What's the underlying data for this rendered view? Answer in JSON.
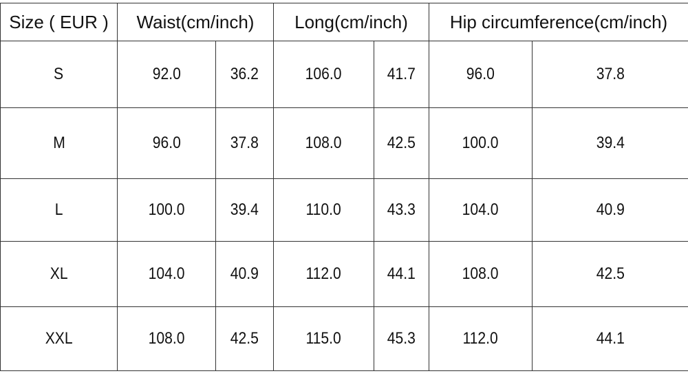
{
  "table": {
    "header": [
      "Size ( EUR )",
      "Waist(cm/inch)",
      "Long(cm/inch)",
      "Hip circumference(cm/inch)"
    ],
    "rows": [
      [
        "S",
        "92.0",
        "36.2",
        "106.0",
        "41.7",
        "96.0",
        "37.8"
      ],
      [
        "M",
        "96.0",
        "37.8",
        "108.0",
        "42.5",
        "100.0",
        "39.4"
      ],
      [
        "L",
        "100.0",
        "39.4",
        "110.0",
        "43.3",
        "104.0",
        "40.9"
      ],
      [
        "XL",
        "104.0",
        "40.9",
        "112.0",
        "44.1",
        "108.0",
        "42.5"
      ],
      [
        "XXL",
        "108.0",
        "42.5",
        "115.0",
        "45.3",
        "112.0",
        "44.1"
      ]
    ]
  }
}
